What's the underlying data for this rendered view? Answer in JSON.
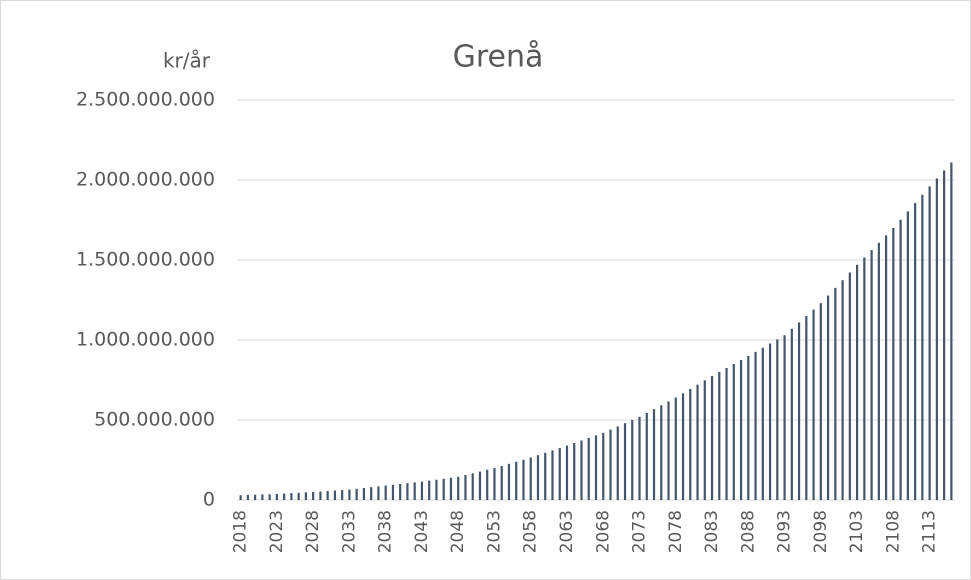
{
  "chart_data": {
    "type": "bar",
    "title": "Grenå",
    "y_label": "kr/år",
    "categories": [
      "2018",
      null,
      null,
      null,
      null,
      "2023",
      null,
      null,
      null,
      null,
      "2028",
      null,
      null,
      null,
      null,
      "2033",
      null,
      null,
      null,
      null,
      "2038",
      null,
      null,
      null,
      null,
      "2043",
      null,
      null,
      null,
      null,
      "2048",
      null,
      null,
      null,
      null,
      "2053",
      null,
      null,
      null,
      null,
      "2058",
      null,
      null,
      null,
      null,
      "2063",
      null,
      null,
      null,
      null,
      "2068",
      null,
      null,
      null,
      null,
      "2073",
      null,
      null,
      null,
      null,
      "2078",
      null,
      null,
      null,
      null,
      "2083",
      null,
      null,
      null,
      null,
      "2088",
      null,
      null,
      null,
      null,
      "2093",
      null,
      null,
      null,
      null,
      "2098",
      null,
      null,
      null,
      null,
      "2103",
      null,
      null,
      null,
      null,
      "2108",
      null,
      null,
      null,
      null,
      "2113",
      null,
      null,
      null
    ],
    "values": [
      30000000,
      32000000,
      33000000,
      35000000,
      36000000,
      38000000,
      40000000,
      43000000,
      45000000,
      48000000,
      50000000,
      53000000,
      56000000,
      59000000,
      62000000,
      65000000,
      70000000,
      75000000,
      80000000,
      85000000,
      90000000,
      95000000,
      100000000,
      105000000,
      110000000,
      115000000,
      121000000,
      127000000,
      133000000,
      139000000,
      145000000,
      156000000,
      167000000,
      178000000,
      189000000,
      200000000,
      213000000,
      226000000,
      239000000,
      252000000,
      265000000,
      280000000,
      295000000,
      310000000,
      325000000,
      340000000,
      356000000,
      372000000,
      388000000,
      404000000,
      420000000,
      440000000,
      460000000,
      480000000,
      500000000,
      520000000,
      544000000,
      568000000,
      592000000,
      616000000,
      640000000,
      667000000,
      694000000,
      721000000,
      748000000,
      775000000,
      800000000,
      825000000,
      850000000,
      875000000,
      900000000,
      926000000,
      952000000,
      978000000,
      1004000000,
      1030000000,
      1070000000,
      1110000000,
      1150000000,
      1190000000,
      1230000000,
      1278000000,
      1326000000,
      1374000000,
      1422000000,
      1470000000,
      1516000000,
      1562000000,
      1608000000,
      1654000000,
      1700000000,
      1752000000,
      1804000000,
      1856000000,
      1908000000,
      1960000000,
      2010000000,
      2060000000,
      2110000000
    ],
    "color": "#44546a",
    "ylim": [
      0,
      2500000000
    ],
    "yticks": [
      0,
      {
        "value": 500000000,
        "label": "500.000.000"
      },
      {
        "value": 1000000000,
        "label": "1.000.000.000"
      },
      {
        "value": 1500000000,
        "label": "1.500.000.000"
      },
      {
        "value": 2000000000,
        "label": "2.000.000.000"
      },
      {
        "value": 2500000000,
        "label": "2.500.000.000"
      }
    ],
    "grid": true
  }
}
